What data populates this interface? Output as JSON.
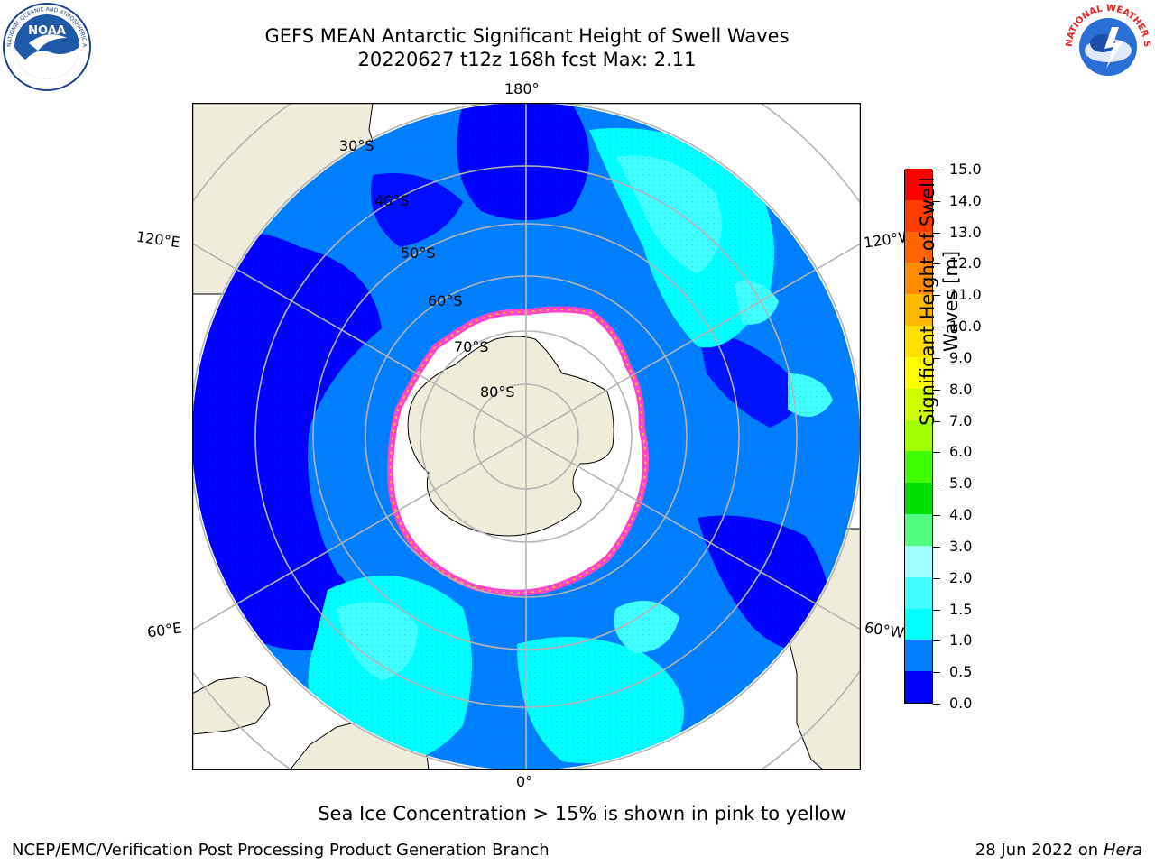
{
  "header": {
    "title_line1": "GEFS MEAN Antarctic Significant Height of Swell Waves",
    "title_line2": "20220627 t12z 168h fcst   Max: 2.11"
  },
  "logos": {
    "noaa": {
      "label": "NOAA",
      "ring_text": "NATIONAL OCEANIC AND ATMOSPHERIC ADMINISTRATION · U.S. DEPARTMENT OF COMMERCE"
    },
    "nws": {
      "ring_text": "NATIONAL WEATHER SERVICE"
    }
  },
  "map": {
    "projection": "south polar stereographic",
    "longitude_labels": {
      "top": "180°",
      "bottom": "0°",
      "upper_left": "120°E",
      "lower_left": "60°E",
      "upper_right": "120°W",
      "lower_right": "60°W"
    },
    "latitude_labels": [
      "30°S",
      "40°S",
      "50°S",
      "60°S",
      "70°S",
      "80°S"
    ],
    "colors": {
      "land": "#efecdc",
      "ice_free_pack": "#ffffff",
      "ice_edge_pink": "#ff44cc",
      "ice_edge_orange": "#ffb732",
      "graticule": "#b4b4b4",
      "coast": "#000000"
    }
  },
  "colorbar": {
    "label": "Significant Height of Swell Waves [m]",
    "label_line1": "Significant Height of Swell",
    "label_line2": "Waves [m]",
    "levels": [
      "0.0",
      "0.5",
      "1.0",
      "1.5",
      "2.0",
      "3.0",
      "4.0",
      "5.0",
      "6.0",
      "7.0",
      "8.0",
      "9.0",
      "10.0",
      "11.0",
      "12.0",
      "13.0",
      "14.0",
      "15.0"
    ],
    "colors": [
      "#0000ff",
      "#0080ff",
      "#00ffff",
      "#40ffff",
      "#a0ffff",
      "#50ff80",
      "#00e000",
      "#40ff00",
      "#a0ff00",
      "#d0ff00",
      "#ffff00",
      "#ffe000",
      "#ffb800",
      "#ff8c00",
      "#ff6400",
      "#ff3c00",
      "#ff0000"
    ]
  },
  "note": "Sea Ice Concentration > 15% is shown in pink to yellow",
  "footer": {
    "left": "NCEP/EMC/Verification Post Processing Product Generation Branch",
    "right_date": "28 Jun 2022 on",
    "right_host": "Hera"
  }
}
